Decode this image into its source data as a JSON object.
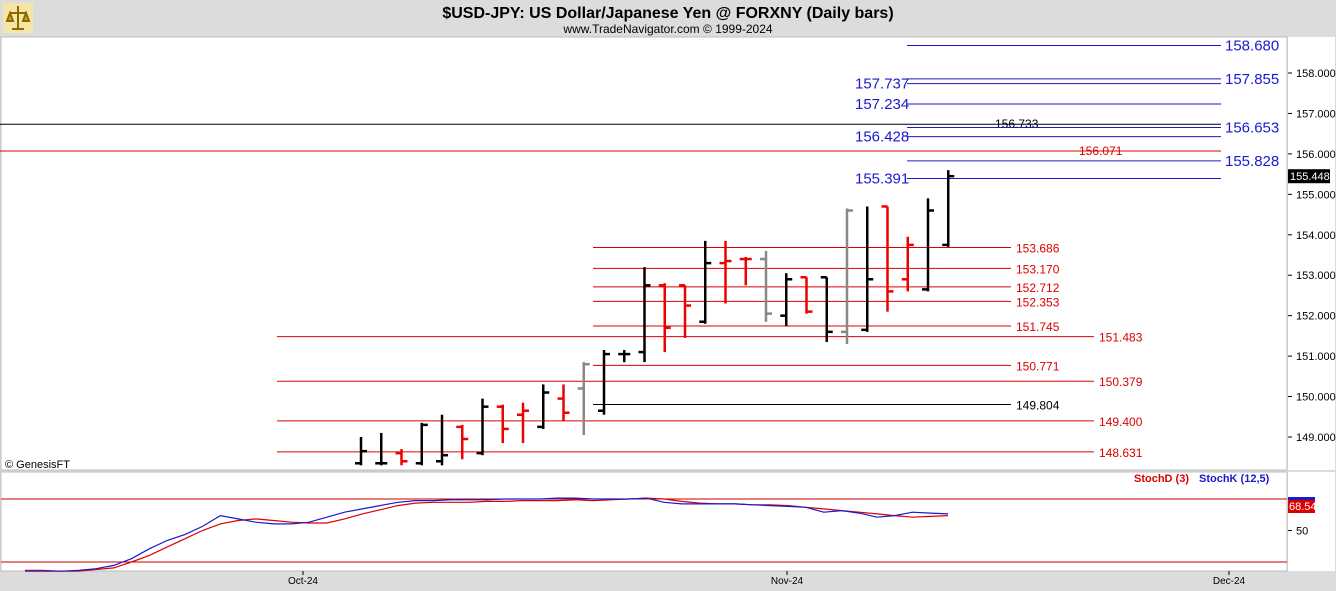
{
  "header": {
    "title": "$USD-JPY:  US Dollar/Japanese Yen @ FORXNY  (Daily bars)",
    "subtitle": "www.TradeNavigator.com © 1999-2024",
    "credit": "© GenesisFT"
  },
  "colors": {
    "up": "#000000",
    "down": "#ee0000",
    "neutral": "#888888",
    "blue": "#1a1acc",
    "red": "#dd0000",
    "panel": "#ffffff",
    "frame": "#dcdcdc"
  },
  "chart_data": [
    {
      "type": "ohlc",
      "name": "price",
      "y_axis": {
        "range": [
          148.3,
          159.0
        ],
        "ticks": [
          "149.000",
          "150.000",
          "151.000",
          "152.000",
          "153.000",
          "154.000",
          "155.000",
          "156.000",
          "157.000",
          "158.000"
        ]
      },
      "x_axis": {
        "ticks": [
          "Oct-24",
          "Nov-24",
          "Dec-24"
        ]
      },
      "last_price": "155.448",
      "bars": [
        {
          "o": 148.35,
          "h": 149.0,
          "l": 148.3,
          "c": 148.65,
          "col": "up"
        },
        {
          "o": 148.35,
          "h": 149.1,
          "l": 148.3,
          "c": 148.35,
          "col": "up"
        },
        {
          "o": 148.6,
          "h": 148.7,
          "l": 148.3,
          "c": 148.4,
          "col": "down"
        },
        {
          "o": 148.35,
          "h": 149.35,
          "l": 148.3,
          "c": 149.3,
          "col": "up"
        },
        {
          "o": 148.4,
          "h": 149.55,
          "l": 148.3,
          "c": 148.55,
          "col": "up"
        },
        {
          "o": 149.25,
          "h": 149.3,
          "l": 148.45,
          "c": 148.95,
          "col": "down"
        },
        {
          "o": 148.6,
          "h": 149.95,
          "l": 148.55,
          "c": 149.75,
          "col": "up"
        },
        {
          "o": 149.75,
          "h": 149.8,
          "l": 148.85,
          "c": 149.2,
          "col": "down"
        },
        {
          "o": 149.55,
          "h": 149.85,
          "l": 148.85,
          "c": 149.65,
          "col": "down"
        },
        {
          "o": 149.25,
          "h": 150.3,
          "l": 149.2,
          "c": 150.1,
          "col": "up"
        },
        {
          "o": 149.95,
          "h": 150.3,
          "l": 149.4,
          "c": 149.6,
          "col": "down"
        },
        {
          "o": 150.2,
          "h": 150.85,
          "l": 149.05,
          "c": 150.8,
          "col": "neutral"
        },
        {
          "o": 149.65,
          "h": 151.15,
          "l": 149.55,
          "c": 151.05,
          "col": "up"
        },
        {
          "o": 151.05,
          "h": 151.15,
          "l": 150.85,
          "c": 151.05,
          "col": "up"
        },
        {
          "o": 151.1,
          "h": 153.2,
          "l": 150.85,
          "c": 152.75,
          "col": "up"
        },
        {
          "o": 152.75,
          "h": 152.8,
          "l": 151.1,
          "c": 151.7,
          "col": "down"
        },
        {
          "o": 152.75,
          "h": 152.75,
          "l": 151.45,
          "c": 152.25,
          "col": "down"
        },
        {
          "o": 151.85,
          "h": 153.85,
          "l": 151.8,
          "c": 153.3,
          "col": "up"
        },
        {
          "o": 153.3,
          "h": 153.85,
          "l": 152.3,
          "c": 153.35,
          "col": "down"
        },
        {
          "o": 153.4,
          "h": 153.45,
          "l": 152.75,
          "c": 153.4,
          "col": "down"
        },
        {
          "o": 153.4,
          "h": 153.6,
          "l": 151.85,
          "c": 152.05,
          "col": "neutral"
        },
        {
          "o": 152.0,
          "h": 153.05,
          "l": 151.75,
          "c": 152.9,
          "col": "up"
        },
        {
          "o": 152.95,
          "h": 152.95,
          "l": 152.05,
          "c": 152.1,
          "col": "down"
        },
        {
          "o": 152.95,
          "h": 152.95,
          "l": 151.35,
          "c": 151.6,
          "col": "up"
        },
        {
          "o": 151.6,
          "h": 154.65,
          "l": 151.3,
          "c": 154.6,
          "col": "neutral"
        },
        {
          "o": 151.65,
          "h": 154.7,
          "l": 151.6,
          "c": 152.9,
          "col": "up"
        },
        {
          "o": 154.7,
          "h": 154.7,
          "l": 152.1,
          "c": 152.6,
          "col": "down"
        },
        {
          "o": 152.9,
          "h": 153.95,
          "l": 152.6,
          "c": 153.75,
          "col": "down"
        },
        {
          "o": 152.65,
          "h": 154.9,
          "l": 152.6,
          "c": 154.6,
          "col": "up"
        },
        {
          "o": 153.75,
          "h": 155.6,
          "l": 153.7,
          "c": 155.45,
          "col": "up"
        }
      ],
      "levels": [
        {
          "v": 158.68,
          "label": "158.680",
          "color": "blue",
          "style": "big",
          "side": "right"
        },
        {
          "v": 157.855,
          "label": "157.855",
          "color": "blue",
          "style": "big",
          "side": "right"
        },
        {
          "v": 157.737,
          "label": "157.737",
          "color": "blue",
          "style": "big",
          "side": "left"
        },
        {
          "v": 157.234,
          "label": "157.234",
          "color": "blue",
          "style": "big",
          "side": "left"
        },
        {
          "v": 156.733,
          "label": "156.733",
          "color": "black",
          "style": "small",
          "side": "mid"
        },
        {
          "v": 156.653,
          "label": "156.653",
          "color": "blue",
          "style": "big",
          "side": "right"
        },
        {
          "v": 156.428,
          "label": "156.428",
          "color": "blue",
          "style": "big",
          "side": "left"
        },
        {
          "v": 156.071,
          "label": "156.071",
          "color": "red",
          "style": "small",
          "side": "mid"
        },
        {
          "v": 155.828,
          "label": "155.828",
          "color": "blue",
          "style": "big",
          "side": "right"
        },
        {
          "v": 155.391,
          "label": "155.391",
          "color": "blue",
          "style": "big",
          "side": "left"
        },
        {
          "v": 153.686,
          "label": "153.686",
          "color": "red",
          "style": "small",
          "side": "a"
        },
        {
          "v": 153.17,
          "label": "153.170",
          "color": "red",
          "style": "small",
          "side": "a"
        },
        {
          "v": 152.712,
          "label": "152.712",
          "color": "red",
          "style": "small",
          "side": "a"
        },
        {
          "v": 152.353,
          "label": "152.353",
          "color": "red",
          "style": "small",
          "side": "a"
        },
        {
          "v": 151.745,
          "label": "151.745",
          "color": "red",
          "style": "small",
          "side": "a"
        },
        {
          "v": 151.483,
          "label": "151.483",
          "color": "red",
          "style": "small",
          "side": "b"
        },
        {
          "v": 150.771,
          "label": "150.771",
          "color": "red",
          "style": "small",
          "side": "a"
        },
        {
          "v": 150.379,
          "label": "150.379",
          "color": "red",
          "style": "small",
          "side": "b"
        },
        {
          "v": 149.804,
          "label": "149.804",
          "color": "black",
          "style": "small",
          "side": "a"
        },
        {
          "v": 149.4,
          "label": "149.400",
          "color": "red",
          "style": "small",
          "side": "b"
        },
        {
          "v": 148.631,
          "label": "148.631",
          "color": "red",
          "style": "small",
          "side": "b"
        }
      ]
    },
    {
      "type": "line",
      "name": "stochastic",
      "y_axis": {
        "range": [
          0,
          100
        ],
        "ticks": [
          "50"
        ]
      },
      "last_value": "68.54",
      "legend": [
        "StochD (3)",
        "StochK (12,5)"
      ],
      "series": [
        {
          "name": "StochD (3)",
          "color": "red",
          "values": [
            2,
            2,
            1,
            1,
            3,
            5,
            12,
            20,
            30,
            40,
            50,
            58,
            62,
            64,
            62,
            60,
            59,
            59,
            64,
            70,
            75,
            80,
            83,
            84,
            84,
            84,
            85,
            85,
            86,
            86,
            86,
            87,
            86,
            87,
            88,
            89,
            88,
            85,
            83,
            82,
            82,
            81,
            81,
            80,
            78,
            76,
            74,
            72,
            70,
            68,
            66,
            67,
            68
          ]
        },
        {
          "name": "StochK (12,5)",
          "color": "blue",
          "values": [
            1,
            1,
            1,
            2,
            4,
            8,
            16,
            28,
            38,
            45,
            55,
            68,
            64,
            60,
            58,
            58,
            60,
            66,
            72,
            76,
            80,
            84,
            86,
            86,
            87,
            87,
            87,
            88,
            88,
            88,
            89,
            89,
            88,
            88,
            88,
            89,
            84,
            82,
            82,
            82,
            82,
            81,
            80,
            79,
            78,
            72,
            74,
            71,
            66,
            68,
            72,
            71,
            70
          ]
        }
      ]
    }
  ]
}
